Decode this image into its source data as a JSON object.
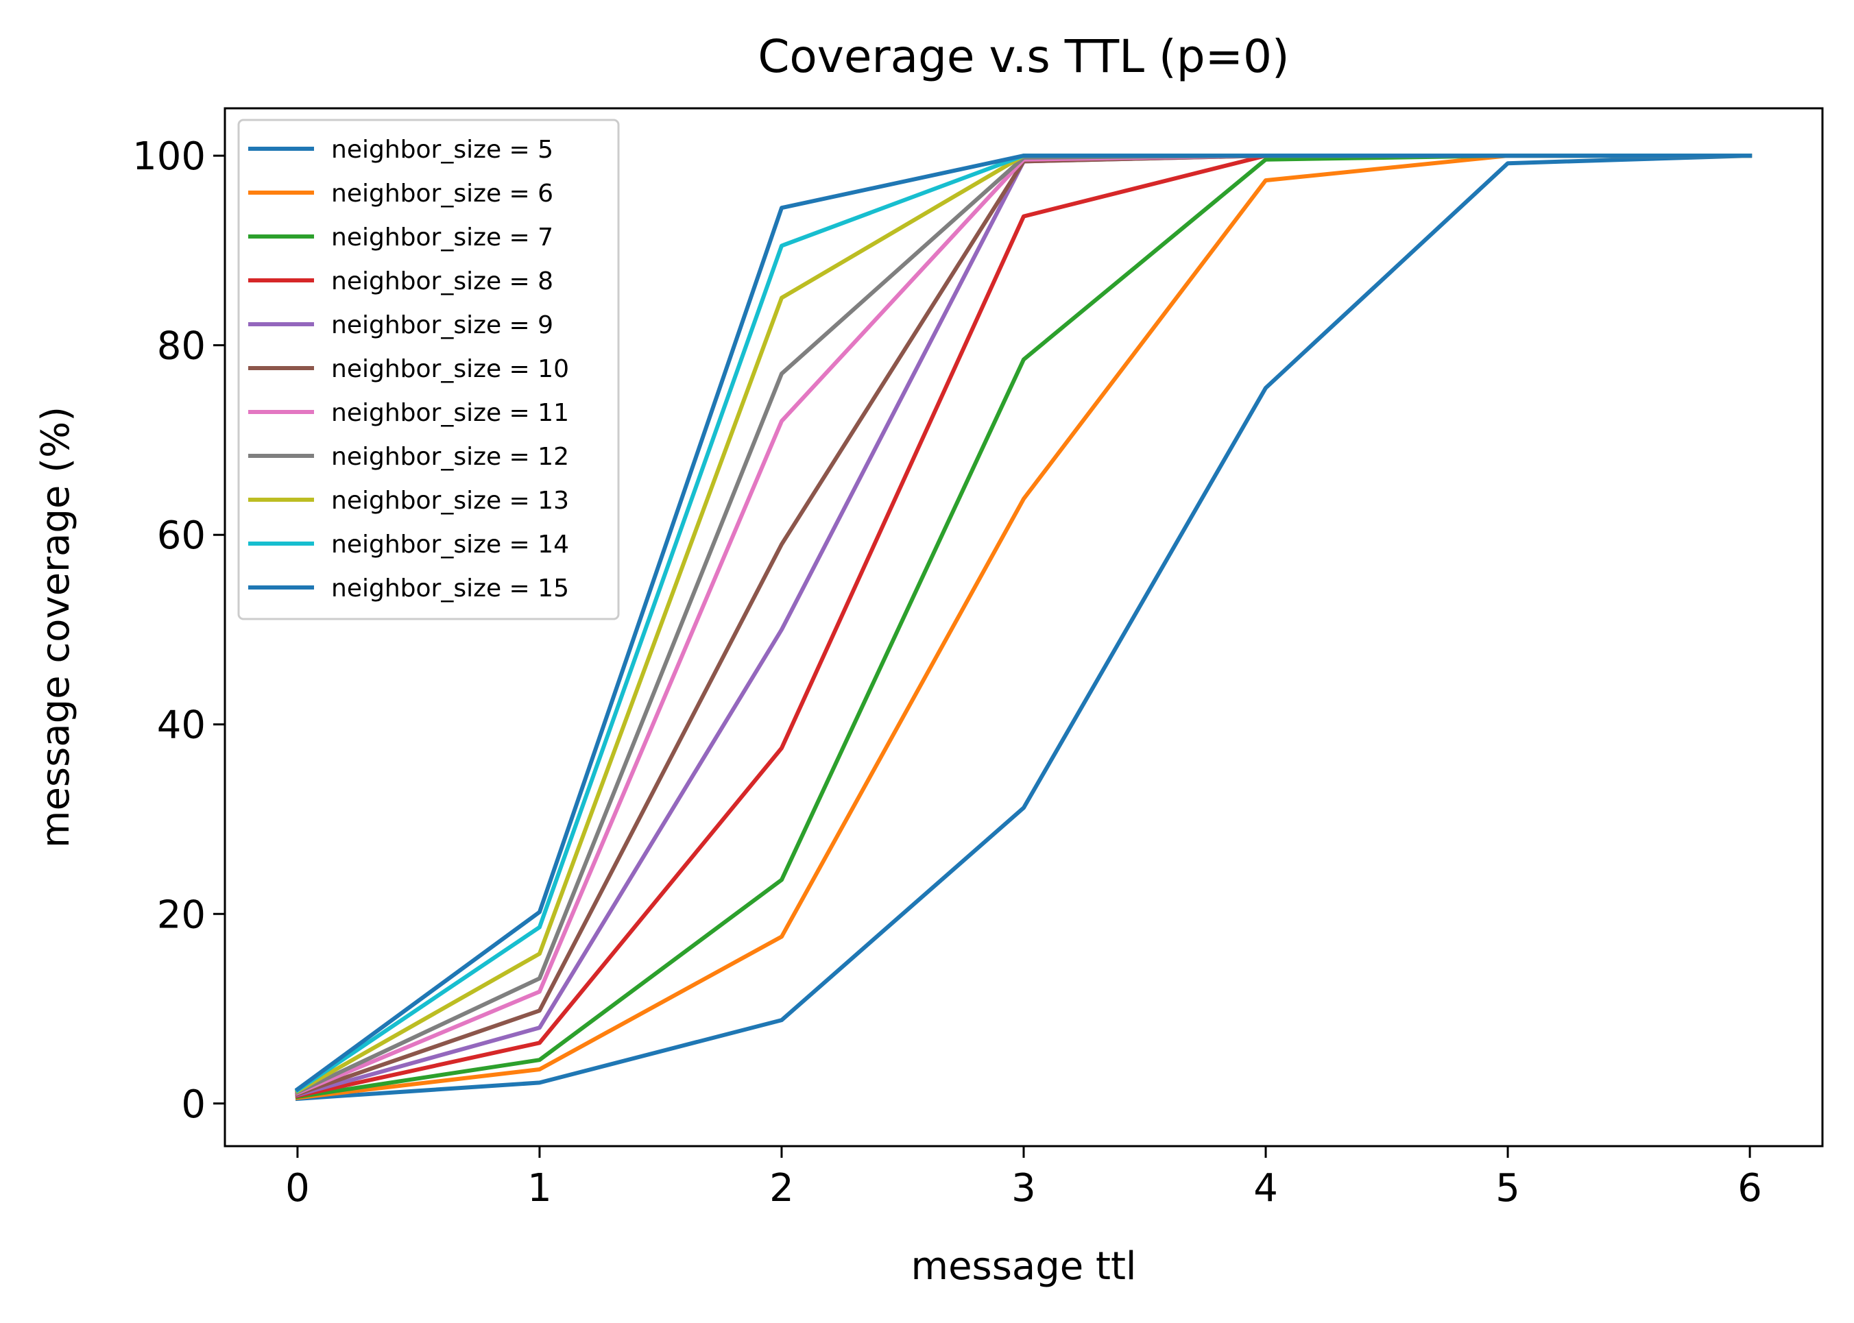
{
  "chart_data": {
    "type": "line",
    "title": "Coverage v.s TTL (p=0)",
    "xlabel": "message ttl",
    "ylabel": "message coverage (%)",
    "xlim": [
      -0.3,
      6.3
    ],
    "ylim": [
      -4.5,
      105
    ],
    "xticks": [
      0,
      1,
      2,
      3,
      4,
      5,
      6
    ],
    "yticks": [
      0,
      20,
      40,
      60,
      80,
      100
    ],
    "grid": false,
    "legend_position": "upper-left",
    "x": [
      0,
      1,
      2,
      3,
      4,
      5,
      6
    ],
    "series": [
      {
        "name": "neighbor_size = 5",
        "color": "#1f77b4",
        "values": [
          0.5,
          2.2,
          8.8,
          31.2,
          75.5,
          99.2,
          100
        ]
      },
      {
        "name": "neighbor_size = 6",
        "color": "#ff7f0e",
        "values": [
          0.6,
          3.6,
          17.6,
          63.8,
          97.4,
          100,
          100
        ]
      },
      {
        "name": "neighbor_size = 7",
        "color": "#2ca02c",
        "values": [
          0.7,
          4.6,
          23.6,
          78.5,
          99.6,
          100,
          100
        ]
      },
      {
        "name": "neighbor_size = 8",
        "color": "#d62728",
        "values": [
          0.8,
          6.4,
          37.5,
          93.6,
          100,
          100,
          100
        ]
      },
      {
        "name": "neighbor_size = 9",
        "color": "#9467bd",
        "values": [
          0.9,
          8.0,
          50.0,
          99.4,
          100,
          100,
          100
        ]
      },
      {
        "name": "neighbor_size = 10",
        "color": "#8c564b",
        "values": [
          1.0,
          9.8,
          59.0,
          99.4,
          100,
          100,
          100
        ]
      },
      {
        "name": "neighbor_size = 11",
        "color": "#e377c2",
        "values": [
          1.1,
          11.8,
          72.0,
          99.6,
          100,
          100,
          100
        ]
      },
      {
        "name": "neighbor_size = 12",
        "color": "#7f7f7f",
        "values": [
          1.2,
          13.2,
          77.0,
          99.8,
          100,
          100,
          100
        ]
      },
      {
        "name": "neighbor_size = 13",
        "color": "#bcbd22",
        "values": [
          1.3,
          15.8,
          85.0,
          100,
          100,
          100,
          100
        ]
      },
      {
        "name": "neighbor_size = 14",
        "color": "#17becf",
        "values": [
          1.4,
          18.6,
          90.5,
          100,
          100,
          100,
          100
        ]
      },
      {
        "name": "neighbor_size = 15",
        "color": "#1f77b4",
        "values": [
          1.5,
          20.2,
          94.5,
          100,
          100,
          100,
          100
        ]
      }
    ]
  }
}
